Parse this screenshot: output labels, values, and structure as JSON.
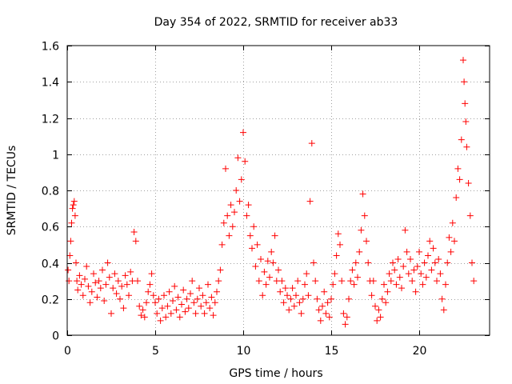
{
  "chart_data": {
    "type": "scatter",
    "title": "Day 354 of 2022, SRMTID for receiver ab33",
    "xlabel": "GPS time / hours",
    "ylabel": "SRMTID / TECUs",
    "xlim": [
      0,
      24
    ],
    "ylim": [
      0,
      1.6
    ],
    "xticks": [
      0,
      5,
      10,
      15,
      20
    ],
    "xtick_labels": [
      "0",
      "5",
      "10",
      "15",
      "20"
    ],
    "yticks": [
      0,
      0.2,
      0.4,
      0.6,
      0.8,
      1,
      1.2,
      1.4,
      1.6
    ],
    "ytick_labels": [
      "0",
      "0.2",
      "0.4",
      "0.6",
      "0.8",
      "1",
      "1.2",
      "1.4",
      "1.6"
    ],
    "grid": true,
    "marker": "plus",
    "color": "#ff0000",
    "series": [
      {
        "name": "SRMTID",
        "points": [
          [
            0.05,
            0.36
          ],
          [
            0.1,
            0.3
          ],
          [
            0.15,
            0.44
          ],
          [
            0.2,
            0.52
          ],
          [
            0.25,
            0.62
          ],
          [
            0.3,
            0.7
          ],
          [
            0.35,
            0.72
          ],
          [
            0.4,
            0.74
          ],
          [
            0.45,
            0.66
          ],
          [
            0.5,
            0.4
          ],
          [
            0.55,
            0.3
          ],
          [
            0.6,
            0.25
          ],
          [
            0.7,
            0.33
          ],
          [
            0.8,
            0.28
          ],
          [
            0.9,
            0.22
          ],
          [
            1.0,
            0.31
          ],
          [
            1.1,
            0.38
          ],
          [
            1.2,
            0.27
          ],
          [
            1.3,
            0.18
          ],
          [
            1.4,
            0.24
          ],
          [
            1.5,
            0.34
          ],
          [
            1.6,
            0.29
          ],
          [
            1.7,
            0.21
          ],
          [
            1.8,
            0.3
          ],
          [
            1.9,
            0.26
          ],
          [
            2.0,
            0.36
          ],
          [
            2.1,
            0.19
          ],
          [
            2.2,
            0.28
          ],
          [
            2.3,
            0.4
          ],
          [
            2.4,
            0.32
          ],
          [
            2.5,
            0.12
          ],
          [
            2.6,
            0.26
          ],
          [
            2.7,
            0.34
          ],
          [
            2.8,
            0.23
          ],
          [
            2.9,
            0.3
          ],
          [
            3.0,
            0.2
          ],
          [
            3.1,
            0.27
          ],
          [
            3.2,
            0.15
          ],
          [
            3.3,
            0.33
          ],
          [
            3.4,
            0.28
          ],
          [
            3.5,
            0.22
          ],
          [
            3.6,
            0.35
          ],
          [
            3.7,
            0.3
          ],
          [
            3.8,
            0.57
          ],
          [
            3.9,
            0.52
          ],
          [
            4.0,
            0.3
          ],
          [
            4.1,
            0.16
          ],
          [
            4.2,
            0.11
          ],
          [
            4.3,
            0.14
          ],
          [
            4.4,
            0.1
          ],
          [
            4.5,
            0.18
          ],
          [
            4.6,
            0.24
          ],
          [
            4.7,
            0.28
          ],
          [
            4.8,
            0.34
          ],
          [
            4.9,
            0.22
          ],
          [
            5.0,
            0.18
          ],
          [
            5.1,
            0.12
          ],
          [
            5.2,
            0.2
          ],
          [
            5.3,
            0.08
          ],
          [
            5.4,
            0.15
          ],
          [
            5.5,
            0.22
          ],
          [
            5.6,
            0.1
          ],
          [
            5.7,
            0.16
          ],
          [
            5.8,
            0.24
          ],
          [
            5.9,
            0.12
          ],
          [
            6.0,
            0.19
          ],
          [
            6.1,
            0.27
          ],
          [
            6.2,
            0.14
          ],
          [
            6.3,
            0.21
          ],
          [
            6.4,
            0.1
          ],
          [
            6.5,
            0.17
          ],
          [
            6.6,
            0.25
          ],
          [
            6.7,
            0.13
          ],
          [
            6.8,
            0.2
          ],
          [
            6.9,
            0.15
          ],
          [
            7.0,
            0.23
          ],
          [
            7.1,
            0.3
          ],
          [
            7.2,
            0.18
          ],
          [
            7.3,
            0.12
          ],
          [
            7.4,
            0.2
          ],
          [
            7.5,
            0.26
          ],
          [
            7.6,
            0.16
          ],
          [
            7.7,
            0.22
          ],
          [
            7.8,
            0.12
          ],
          [
            7.9,
            0.18
          ],
          [
            8.0,
            0.28
          ],
          [
            8.1,
            0.15
          ],
          [
            8.2,
            0.21
          ],
          [
            8.3,
            0.11
          ],
          [
            8.4,
            0.18
          ],
          [
            8.5,
            0.24
          ],
          [
            8.6,
            0.3
          ],
          [
            8.7,
            0.36
          ],
          [
            8.8,
            0.5
          ],
          [
            8.9,
            0.62
          ],
          [
            9.0,
            0.92
          ],
          [
            9.1,
            0.66
          ],
          [
            9.2,
            0.55
          ],
          [
            9.3,
            0.72
          ],
          [
            9.4,
            0.6
          ],
          [
            9.5,
            0.68
          ],
          [
            9.6,
            0.8
          ],
          [
            9.7,
            0.98
          ],
          [
            9.8,
            0.74
          ],
          [
            9.9,
            0.86
          ],
          [
            10.0,
            1.12
          ],
          [
            10.1,
            0.96
          ],
          [
            10.2,
            0.66
          ],
          [
            10.3,
            0.72
          ],
          [
            10.4,
            0.55
          ],
          [
            10.5,
            0.48
          ],
          [
            10.6,
            0.6
          ],
          [
            10.7,
            0.38
          ],
          [
            10.8,
            0.5
          ],
          [
            10.9,
            0.3
          ],
          [
            11.0,
            0.42
          ],
          [
            11.1,
            0.22
          ],
          [
            11.2,
            0.35
          ],
          [
            11.3,
            0.28
          ],
          [
            11.4,
            0.41
          ],
          [
            11.5,
            0.32
          ],
          [
            11.6,
            0.46
          ],
          [
            11.7,
            0.4
          ],
          [
            11.8,
            0.55
          ],
          [
            11.9,
            0.3
          ],
          [
            12.0,
            0.36
          ],
          [
            12.1,
            0.24
          ],
          [
            12.2,
            0.3
          ],
          [
            12.3,
            0.18
          ],
          [
            12.4,
            0.26
          ],
          [
            12.5,
            0.22
          ],
          [
            12.6,
            0.14
          ],
          [
            12.7,
            0.2
          ],
          [
            12.8,
            0.26
          ],
          [
            12.9,
            0.16
          ],
          [
            13.0,
            0.22
          ],
          [
            13.1,
            0.3
          ],
          [
            13.2,
            0.18
          ],
          [
            13.3,
            0.12
          ],
          [
            13.4,
            0.2
          ],
          [
            13.5,
            0.28
          ],
          [
            13.6,
            0.34
          ],
          [
            13.7,
            0.22
          ],
          [
            13.8,
            0.74
          ],
          [
            13.9,
            1.06
          ],
          [
            14.0,
            0.4
          ],
          [
            14.1,
            0.3
          ],
          [
            14.2,
            0.2
          ],
          [
            14.3,
            0.14
          ],
          [
            14.4,
            0.08
          ],
          [
            14.5,
            0.16
          ],
          [
            14.6,
            0.24
          ],
          [
            14.7,
            0.12
          ],
          [
            14.8,
            0.18
          ],
          [
            14.9,
            0.1
          ],
          [
            15.0,
            0.2
          ],
          [
            15.1,
            0.28
          ],
          [
            15.2,
            0.34
          ],
          [
            15.3,
            0.44
          ],
          [
            15.4,
            0.56
          ],
          [
            15.5,
            0.5
          ],
          [
            15.6,
            0.3
          ],
          [
            15.7,
            0.12
          ],
          [
            15.8,
            0.06
          ],
          [
            15.9,
            0.1
          ],
          [
            16.0,
            0.2
          ],
          [
            16.1,
            0.3
          ],
          [
            16.2,
            0.36
          ],
          [
            16.3,
            0.28
          ],
          [
            16.4,
            0.4
          ],
          [
            16.5,
            0.32
          ],
          [
            16.6,
            0.46
          ],
          [
            16.7,
            0.58
          ],
          [
            16.8,
            0.78
          ],
          [
            16.9,
            0.66
          ],
          [
            17.0,
            0.52
          ],
          [
            17.1,
            0.4
          ],
          [
            17.2,
            0.3
          ],
          [
            17.3,
            0.22
          ],
          [
            17.4,
            0.3
          ],
          [
            17.5,
            0.16
          ],
          [
            17.6,
            0.08
          ],
          [
            17.7,
            0.14
          ],
          [
            17.8,
            0.1
          ],
          [
            17.9,
            0.2
          ],
          [
            18.0,
            0.28
          ],
          [
            18.1,
            0.18
          ],
          [
            18.2,
            0.24
          ],
          [
            18.3,
            0.34
          ],
          [
            18.4,
            0.3
          ],
          [
            18.5,
            0.4
          ],
          [
            18.6,
            0.36
          ],
          [
            18.7,
            0.28
          ],
          [
            18.8,
            0.42
          ],
          [
            18.9,
            0.32
          ],
          [
            19.0,
            0.26
          ],
          [
            19.1,
            0.38
          ],
          [
            19.2,
            0.58
          ],
          [
            19.3,
            0.46
          ],
          [
            19.4,
            0.34
          ],
          [
            19.5,
            0.42
          ],
          [
            19.6,
            0.3
          ],
          [
            19.7,
            0.36
          ],
          [
            19.8,
            0.24
          ],
          [
            19.9,
            0.38
          ],
          [
            20.0,
            0.46
          ],
          [
            20.1,
            0.34
          ],
          [
            20.2,
            0.28
          ],
          [
            20.3,
            0.4
          ],
          [
            20.4,
            0.32
          ],
          [
            20.5,
            0.44
          ],
          [
            20.6,
            0.52
          ],
          [
            20.7,
            0.36
          ],
          [
            20.8,
            0.48
          ],
          [
            20.9,
            0.4
          ],
          [
            21.0,
            0.3
          ],
          [
            21.1,
            0.42
          ],
          [
            21.2,
            0.34
          ],
          [
            21.3,
            0.2
          ],
          [
            21.4,
            0.14
          ],
          [
            21.5,
            0.28
          ],
          [
            21.6,
            0.4
          ],
          [
            21.7,
            0.54
          ],
          [
            21.8,
            0.46
          ],
          [
            21.9,
            0.62
          ],
          [
            22.0,
            0.52
          ],
          [
            22.1,
            0.76
          ],
          [
            22.2,
            0.92
          ],
          [
            22.3,
            0.86
          ],
          [
            22.4,
            1.08
          ],
          [
            22.5,
            1.52
          ],
          [
            22.55,
            1.4
          ],
          [
            22.6,
            1.28
          ],
          [
            22.65,
            1.18
          ],
          [
            22.7,
            1.04
          ],
          [
            22.8,
            0.84
          ],
          [
            22.9,
            0.66
          ],
          [
            23.0,
            0.4
          ],
          [
            23.1,
            0.3
          ]
        ]
      }
    ]
  }
}
